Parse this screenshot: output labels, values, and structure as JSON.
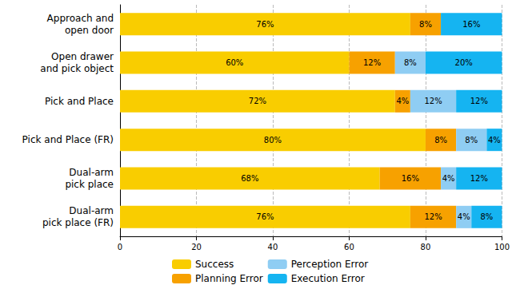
{
  "chart_data": {
    "type": "bar",
    "orientation": "horizontal",
    "stacked": true,
    "data_labels": true,
    "grid": true,
    "legend": "bottom",
    "categories": [
      "Approach and\nopen door",
      "Open drawer\nand pick object",
      "Pick and Place",
      "Pick and Place (FR)",
      "Dual-arm\npick place",
      "Dual-arm\npick place (FR)"
    ],
    "xlim": [
      0,
      100
    ],
    "xticks": [
      0,
      20,
      40,
      60,
      80,
      100
    ],
    "series": [
      {
        "name": "Success",
        "color": "#f9cd00",
        "values": [
          76,
          60,
          72,
          80,
          68,
          76
        ],
        "value_labels": [
          "76%",
          "60%",
          "72%",
          "80%",
          "68%",
          "76%"
        ]
      },
      {
        "name": "Planning Error",
        "color": "#f7a100",
        "values": [
          8,
          12,
          4,
          8,
          16,
          12
        ],
        "value_labels": [
          "8%",
          "12%",
          "4%",
          "8%",
          "16%",
          "12%"
        ]
      },
      {
        "name": "Perception Error",
        "color": "#8fcdf3",
        "values": [
          0,
          8,
          12,
          8,
          4,
          4
        ],
        "value_labels": [
          null,
          "8%",
          "12%",
          "8%",
          "4%",
          "4%"
        ]
      },
      {
        "name": "Execution Error",
        "color": "#15b4f1",
        "values": [
          16,
          20,
          12,
          4,
          12,
          8
        ],
        "value_labels": [
          "16%",
          "20%",
          "12%",
          "4%",
          "12%",
          "8%"
        ]
      }
    ]
  }
}
